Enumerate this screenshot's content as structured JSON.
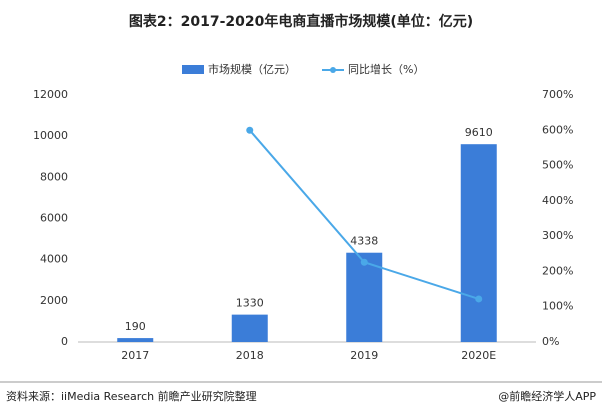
{
  "chart_data": {
    "type": "bar-line",
    "title": "图表2：2017-2020年电商直播市场规模(单位：亿元)",
    "categories": [
      "2017",
      "2018",
      "2019",
      "2020E"
    ],
    "series": [
      {
        "name": "市场规模（亿元）",
        "type": "bar",
        "color": "#3b7dd8",
        "values": [
          190,
          1330,
          4338,
          9610
        ]
      },
      {
        "name": "同比增长（%）",
        "type": "line",
        "axis": "y2",
        "color": "#4aa8e8",
        "values": [
          null,
          600,
          226,
          122
        ]
      }
    ],
    "ylim": [
      0,
      12000
    ],
    "yticks": [
      0,
      2000,
      4000,
      6000,
      8000,
      10000,
      12000
    ],
    "y2lim": [
      0,
      700
    ],
    "y2ticks": [
      {
        "value": 0,
        "label": "0%"
      },
      {
        "value": 100,
        "label": "100%"
      },
      {
        "value": 200,
        "label": "200%"
      },
      {
        "value": 300,
        "label": "300%"
      },
      {
        "value": 400,
        "label": "400%"
      },
      {
        "value": 500,
        "label": "500%"
      },
      {
        "value": 600,
        "label": "600%"
      },
      {
        "value": 700,
        "label": "700%"
      }
    ],
    "grid": false,
    "legend": "top",
    "source": "资料来源：iiMedia Research 前瞻产业研究院整理",
    "footer": "@前瞻经济学人APP"
  }
}
